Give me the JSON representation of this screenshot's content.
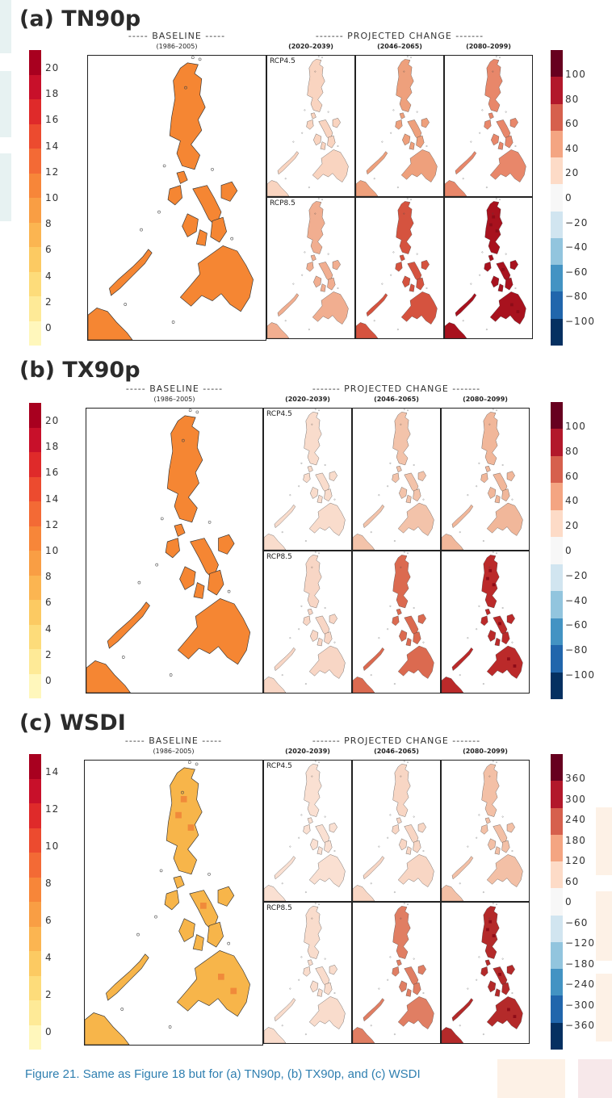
{
  "panels": [
    {
      "title": "(a) TN90p",
      "baseline_header": "----- BASELINE -----",
      "baseline_period": "(1986–2005)",
      "projected_header": "------- PROJECTED CHANGE -------",
      "periods": [
        "(2020–2039)",
        "(2046–2065)",
        "(2080–2099)"
      ],
      "rows": [
        "RCP4.5",
        "RCP8.5"
      ],
      "left_scale": [
        "20",
        "18",
        "16",
        "14",
        "12",
        "10",
        "8",
        "6",
        "4",
        "2",
        "0"
      ],
      "right_scale": [
        "100",
        "80",
        "60",
        "40",
        "20",
        "0",
        "−20",
        "−40",
        "−60",
        "−80",
        "−100"
      ],
      "baseline_color": "#f58633",
      "change_colors": {
        "RCP4.5": [
          "#f9d4c0",
          "#eea07c",
          "#e8876a"
        ],
        "RCP8.5": [
          "#f1ae90",
          "#d5533f",
          "#a8121e"
        ]
      }
    },
    {
      "title": "(b) TX90p",
      "baseline_header": "----- BASELINE -----",
      "baseline_period": "(1986–2005)",
      "projected_header": "------- PROJECTED CHANGE -------",
      "periods": [
        "(2020–2039)",
        "(2046–2065)",
        "(2080–2099)"
      ],
      "rows": [
        "RCP4.5",
        "RCP8.5"
      ],
      "left_scale": [
        "20",
        "18",
        "16",
        "14",
        "12",
        "10",
        "8",
        "6",
        "4",
        "2",
        "0"
      ],
      "right_scale": [
        "100",
        "80",
        "60",
        "40",
        "20",
        "0",
        "−20",
        "−40",
        "−60",
        "−80",
        "−100"
      ],
      "baseline_color": "#f58633",
      "change_colors": {
        "RCP4.5": [
          "#f9dccc",
          "#f3c3aa",
          "#f1b79a"
        ],
        "RCP8.5": [
          "#f8d6c5",
          "#db6a50",
          "#bb2a2a"
        ]
      }
    },
    {
      "title": "(c) WSDI",
      "baseline_header": "----- BASELINE -----",
      "baseline_period": "(1986–2005)",
      "projected_header": "------- PROJECTED CHANGE -------",
      "periods": [
        "(2020–2039)",
        "(2046–2065)",
        "(2080–2099)"
      ],
      "rows": [
        "RCP4.5",
        "RCP8.5"
      ],
      "left_scale": [
        "14",
        "12",
        "10",
        "8",
        "6",
        "4",
        "2",
        "0"
      ],
      "right_scale": [
        "360",
        "300",
        "240",
        "180",
        "120",
        "60",
        "0",
        "−60",
        "−120",
        "−180",
        "−240",
        "−300",
        "−360"
      ],
      "baseline_color": "#f7b54a",
      "change_colors": {
        "RCP4.5": [
          "#fae0d2",
          "#f8d6c4",
          "#f3c0a6"
        ],
        "RCP8.5": [
          "#f9dccc",
          "#e07e63",
          "#b42a2a"
        ]
      }
    }
  ],
  "colors": {
    "seq_left": [
      "#a8001f",
      "#c8102a",
      "#df2a2a",
      "#ec4b2f",
      "#f36a35",
      "#f78639",
      "#f99e44",
      "#fbb551",
      "#fcca62",
      "#fddc7a",
      "#feea97",
      "#fff7bc"
    ],
    "div_right": [
      "#67001f",
      "#b2182b",
      "#d6604d",
      "#f4a582",
      "#fddbc7",
      "#ffffff",
      "#d1e5f0",
      "#92c5de",
      "#4393c3",
      "#2166ac",
      "#053061"
    ]
  },
  "caption": "Figure 21. Same as Figure 18 but for (a) TN90p, (b) TX90p, and (c) WSDI"
}
